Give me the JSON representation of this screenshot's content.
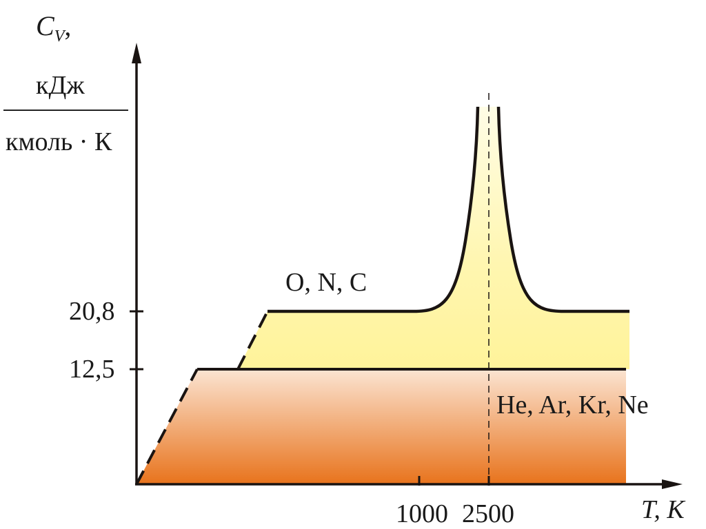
{
  "chart_data": {
    "type": "line",
    "title": "",
    "ylabel": {
      "symbol": "C",
      "subscript": "V",
      "suffix": ",",
      "unit_numerator": "кДж",
      "unit_denominator": "кмоль · К"
    },
    "xlabel": "T, K",
    "y_ticks": [
      "20,8",
      "12,5"
    ],
    "x_ticks": [
      "1000",
      "2500"
    ],
    "series": [
      {
        "name": "He, Ar, Kr, Ne",
        "plateau_value": 12.5,
        "fill_color_top": "#fbe4d2",
        "fill_color_bottom": "#e8731c"
      },
      {
        "name": "O, N, C",
        "plateau_value": 20.8,
        "peak_at": 2500,
        "fill_color": "#fff6a8"
      }
    ],
    "grid": false,
    "reference_line": {
      "x": 2500,
      "style": "dashed"
    }
  }
}
